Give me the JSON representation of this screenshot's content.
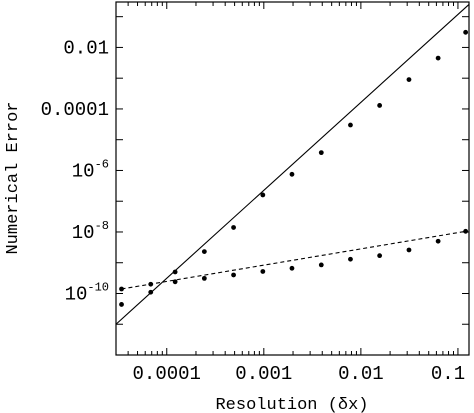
{
  "chart_data": {
    "type": "line",
    "title": "",
    "xlabel": "Resolution (δx)",
    "ylabel": "Numerical Error",
    "xscale": "log",
    "yscale": "log",
    "xlim": [
      3e-05,
      0.13
    ],
    "ylim": [
      1e-12,
      0.3
    ],
    "grid": false,
    "legend": "none",
    "x_ticks": [
      {
        "value": 0.0001,
        "label": "0.0001"
      },
      {
        "value": 0.001,
        "label": "0.001"
      },
      {
        "value": 0.01,
        "label": "0.01"
      },
      {
        "value": 0.1,
        "label": "0.1"
      }
    ],
    "y_ticks": [
      {
        "value": 1e-10,
        "base": "10",
        "exp": "-10"
      },
      {
        "value": 1e-08,
        "base": "10",
        "exp": "-8"
      },
      {
        "value": 1e-06,
        "base": "10",
        "exp": "-6"
      },
      {
        "value": 0.0001,
        "label": "0.0001"
      },
      {
        "value": 0.01,
        "label": "0.01"
      }
    ],
    "series": [
      {
        "style": "solid",
        "color": "#000000",
        "line_x": [
          3e-05,
          0.13
        ],
        "line_y": [
          1e-11,
          0.25
        ],
        "x": [
          3.42e-05,
          6.84e-05,
          0.000122,
          0.000244,
          0.000488,
          0.000977,
          0.00195,
          0.00391,
          0.00781,
          0.0156,
          0.0313,
          0.0625,
          0.12
        ],
        "y": [
          4.4e-11,
          1.1e-10,
          5e-10,
          2.3e-09,
          1.4e-08,
          1.6e-07,
          7.5e-07,
          3.8e-06,
          3e-05,
          0.00013,
          0.0009,
          0.0045,
          0.031
        ]
      },
      {
        "style": "dashed",
        "color": "#000000",
        "line_x": [
          3.42e-05,
          0.12
        ],
        "line_y": [
          1.4e-10,
          1.05e-08
        ],
        "x": [
          3.42e-05,
          6.84e-05,
          0.000122,
          0.000244,
          0.000488,
          0.000977,
          0.00195,
          0.00391,
          0.00781,
          0.0156,
          0.0313,
          0.0625,
          0.12
        ],
        "y": [
          1.4e-10,
          2e-10,
          2.4e-10,
          3.1e-10,
          4e-10,
          5.2e-10,
          6.6e-10,
          8.5e-10,
          1.3e-09,
          1.7e-09,
          2.6e-09,
          5e-09,
          1.05e-08
        ]
      }
    ]
  }
}
